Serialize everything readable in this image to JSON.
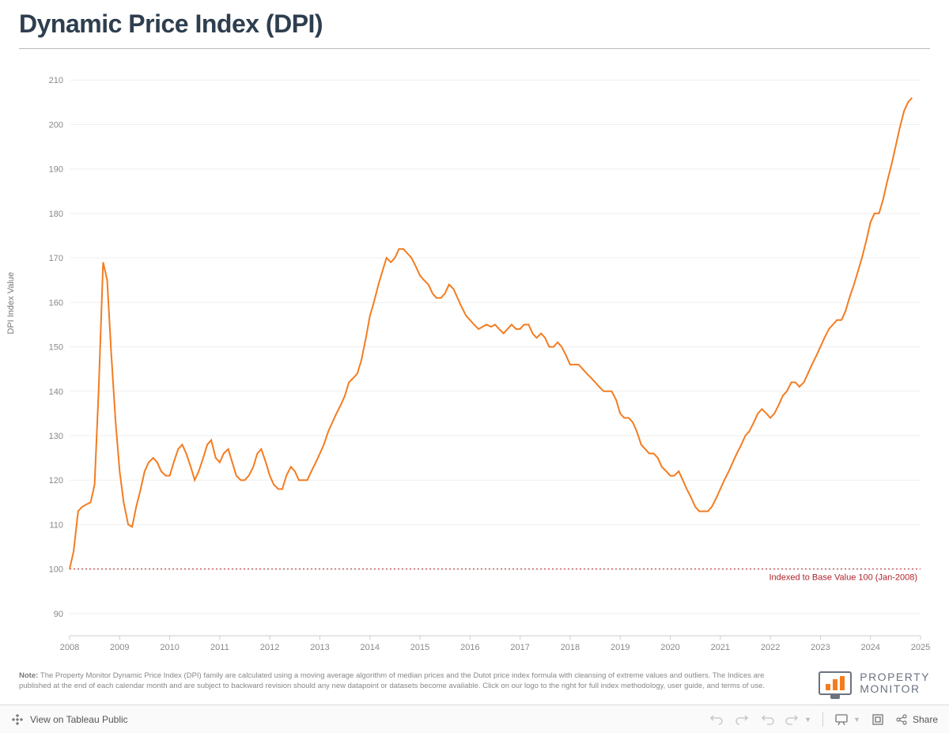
{
  "title": "Dynamic Price Index (DPI)",
  "chart": {
    "type": "line",
    "y_axis_title": "DPI Index Value",
    "line_color": "#f47c20",
    "line_width": 2,
    "background_color": "#ffffff",
    "grid_color": "#efefef",
    "axis_color": "#cccccc",
    "tick_label_color": "#888888",
    "tick_fontsize": 11,
    "y_ticks": [
      90,
      100,
      110,
      120,
      130,
      140,
      150,
      160,
      170,
      180,
      190,
      200,
      210
    ],
    "ylim": [
      85,
      212
    ],
    "x_ticks": [
      "2008",
      "2009",
      "2010",
      "2011",
      "2012",
      "2013",
      "2014",
      "2015",
      "2016",
      "2017",
      "2018",
      "2019",
      "2020",
      "2021",
      "2022",
      "2023",
      "2024",
      "2025"
    ],
    "xlim": [
      2008,
      2025
    ],
    "reference_line": {
      "value": 100,
      "label": "Indexed to Base Value 100 (Jan-2008)",
      "color": "#b0232a",
      "style": "dotted"
    },
    "series": [
      {
        "x": 2008.0,
        "y": 100.0
      },
      {
        "x": 2008.08,
        "y": 104.0
      },
      {
        "x": 2008.17,
        "y": 113.0
      },
      {
        "x": 2008.25,
        "y": 114.0
      },
      {
        "x": 2008.33,
        "y": 114.5
      },
      {
        "x": 2008.42,
        "y": 115.0
      },
      {
        "x": 2008.5,
        "y": 119.0
      },
      {
        "x": 2008.58,
        "y": 140.0
      },
      {
        "x": 2008.67,
        "y": 169.0
      },
      {
        "x": 2008.75,
        "y": 165.0
      },
      {
        "x": 2008.83,
        "y": 149.0
      },
      {
        "x": 2008.92,
        "y": 133.0
      },
      {
        "x": 2009.0,
        "y": 122.0
      },
      {
        "x": 2009.08,
        "y": 115.0
      },
      {
        "x": 2009.17,
        "y": 110.0
      },
      {
        "x": 2009.25,
        "y": 109.5
      },
      {
        "x": 2009.33,
        "y": 114.0
      },
      {
        "x": 2009.42,
        "y": 118.0
      },
      {
        "x": 2009.5,
        "y": 122.0
      },
      {
        "x": 2009.58,
        "y": 124.0
      },
      {
        "x": 2009.67,
        "y": 125.0
      },
      {
        "x": 2009.75,
        "y": 124.0
      },
      {
        "x": 2009.83,
        "y": 122.0
      },
      {
        "x": 2009.92,
        "y": 121.0
      },
      {
        "x": 2010.0,
        "y": 121.0
      },
      {
        "x": 2010.08,
        "y": 124.0
      },
      {
        "x": 2010.17,
        "y": 127.0
      },
      {
        "x": 2010.25,
        "y": 128.0
      },
      {
        "x": 2010.33,
        "y": 126.0
      },
      {
        "x": 2010.42,
        "y": 123.0
      },
      {
        "x": 2010.5,
        "y": 120.0
      },
      {
        "x": 2010.58,
        "y": 122.0
      },
      {
        "x": 2010.67,
        "y": 125.0
      },
      {
        "x": 2010.75,
        "y": 128.0
      },
      {
        "x": 2010.83,
        "y": 129.0
      },
      {
        "x": 2010.92,
        "y": 125.0
      },
      {
        "x": 2011.0,
        "y": 124.0
      },
      {
        "x": 2011.08,
        "y": 126.0
      },
      {
        "x": 2011.17,
        "y": 127.0
      },
      {
        "x": 2011.25,
        "y": 124.0
      },
      {
        "x": 2011.33,
        "y": 121.0
      },
      {
        "x": 2011.42,
        "y": 120.0
      },
      {
        "x": 2011.5,
        "y": 120.0
      },
      {
        "x": 2011.58,
        "y": 121.0
      },
      {
        "x": 2011.67,
        "y": 123.0
      },
      {
        "x": 2011.75,
        "y": 126.0
      },
      {
        "x": 2011.83,
        "y": 127.0
      },
      {
        "x": 2011.92,
        "y": 124.0
      },
      {
        "x": 2012.0,
        "y": 121.0
      },
      {
        "x": 2012.08,
        "y": 119.0
      },
      {
        "x": 2012.17,
        "y": 118.0
      },
      {
        "x": 2012.25,
        "y": 118.0
      },
      {
        "x": 2012.33,
        "y": 121.0
      },
      {
        "x": 2012.42,
        "y": 123.0
      },
      {
        "x": 2012.5,
        "y": 122.0
      },
      {
        "x": 2012.58,
        "y": 120.0
      },
      {
        "x": 2012.67,
        "y": 120.0
      },
      {
        "x": 2012.75,
        "y": 120.0
      },
      {
        "x": 2012.83,
        "y": 122.0
      },
      {
        "x": 2012.92,
        "y": 124.0
      },
      {
        "x": 2013.0,
        "y": 126.0
      },
      {
        "x": 2013.08,
        "y": 128.0
      },
      {
        "x": 2013.17,
        "y": 131.0
      },
      {
        "x": 2013.25,
        "y": 133.0
      },
      {
        "x": 2013.33,
        "y": 135.0
      },
      {
        "x": 2013.42,
        "y": 137.0
      },
      {
        "x": 2013.5,
        "y": 139.0
      },
      {
        "x": 2013.58,
        "y": 142.0
      },
      {
        "x": 2013.67,
        "y": 143.0
      },
      {
        "x": 2013.75,
        "y": 144.0
      },
      {
        "x": 2013.83,
        "y": 147.0
      },
      {
        "x": 2013.92,
        "y": 152.0
      },
      {
        "x": 2014.0,
        "y": 157.0
      },
      {
        "x": 2014.08,
        "y": 160.0
      },
      {
        "x": 2014.17,
        "y": 164.0
      },
      {
        "x": 2014.25,
        "y": 167.0
      },
      {
        "x": 2014.33,
        "y": 170.0
      },
      {
        "x": 2014.42,
        "y": 169.0
      },
      {
        "x": 2014.5,
        "y": 170.0
      },
      {
        "x": 2014.58,
        "y": 172.0
      },
      {
        "x": 2014.67,
        "y": 172.0
      },
      {
        "x": 2014.75,
        "y": 171.0
      },
      {
        "x": 2014.83,
        "y": 170.0
      },
      {
        "x": 2014.92,
        "y": 168.0
      },
      {
        "x": 2015.0,
        "y": 166.0
      },
      {
        "x": 2015.08,
        "y": 165.0
      },
      {
        "x": 2015.17,
        "y": 164.0
      },
      {
        "x": 2015.25,
        "y": 162.0
      },
      {
        "x": 2015.33,
        "y": 161.0
      },
      {
        "x": 2015.42,
        "y": 161.0
      },
      {
        "x": 2015.5,
        "y": 162.0
      },
      {
        "x": 2015.58,
        "y": 164.0
      },
      {
        "x": 2015.67,
        "y": 163.0
      },
      {
        "x": 2015.75,
        "y": 161.0
      },
      {
        "x": 2015.83,
        "y": 159.0
      },
      {
        "x": 2015.92,
        "y": 157.0
      },
      {
        "x": 2016.0,
        "y": 156.0
      },
      {
        "x": 2016.08,
        "y": 155.0
      },
      {
        "x": 2016.17,
        "y": 154.0
      },
      {
        "x": 2016.25,
        "y": 154.5
      },
      {
        "x": 2016.33,
        "y": 155.0
      },
      {
        "x": 2016.42,
        "y": 154.5
      },
      {
        "x": 2016.5,
        "y": 155.0
      },
      {
        "x": 2016.58,
        "y": 154.0
      },
      {
        "x": 2016.67,
        "y": 153.0
      },
      {
        "x": 2016.75,
        "y": 154.0
      },
      {
        "x": 2016.83,
        "y": 155.0
      },
      {
        "x": 2016.92,
        "y": 154.0
      },
      {
        "x": 2017.0,
        "y": 154.0
      },
      {
        "x": 2017.08,
        "y": 155.0
      },
      {
        "x": 2017.17,
        "y": 155.0
      },
      {
        "x": 2017.25,
        "y": 153.0
      },
      {
        "x": 2017.33,
        "y": 152.0
      },
      {
        "x": 2017.42,
        "y": 153.0
      },
      {
        "x": 2017.5,
        "y": 152.0
      },
      {
        "x": 2017.58,
        "y": 150.0
      },
      {
        "x": 2017.67,
        "y": 150.0
      },
      {
        "x": 2017.75,
        "y": 151.0
      },
      {
        "x": 2017.83,
        "y": 150.0
      },
      {
        "x": 2017.92,
        "y": 148.0
      },
      {
        "x": 2018.0,
        "y": 146.0
      },
      {
        "x": 2018.08,
        "y": 146.0
      },
      {
        "x": 2018.17,
        "y": 146.0
      },
      {
        "x": 2018.25,
        "y": 145.0
      },
      {
        "x": 2018.33,
        "y": 144.0
      },
      {
        "x": 2018.42,
        "y": 143.0
      },
      {
        "x": 2018.5,
        "y": 142.0
      },
      {
        "x": 2018.58,
        "y": 141.0
      },
      {
        "x": 2018.67,
        "y": 140.0
      },
      {
        "x": 2018.75,
        "y": 140.0
      },
      {
        "x": 2018.83,
        "y": 140.0
      },
      {
        "x": 2018.92,
        "y": 138.0
      },
      {
        "x": 2019.0,
        "y": 135.0
      },
      {
        "x": 2019.08,
        "y": 134.0
      },
      {
        "x": 2019.17,
        "y": 134.0
      },
      {
        "x": 2019.25,
        "y": 133.0
      },
      {
        "x": 2019.33,
        "y": 131.0
      },
      {
        "x": 2019.42,
        "y": 128.0
      },
      {
        "x": 2019.5,
        "y": 127.0
      },
      {
        "x": 2019.58,
        "y": 126.0
      },
      {
        "x": 2019.67,
        "y": 126.0
      },
      {
        "x": 2019.75,
        "y": 125.0
      },
      {
        "x": 2019.83,
        "y": 123.0
      },
      {
        "x": 2019.92,
        "y": 122.0
      },
      {
        "x": 2020.0,
        "y": 121.0
      },
      {
        "x": 2020.08,
        "y": 121.0
      },
      {
        "x": 2020.17,
        "y": 122.0
      },
      {
        "x": 2020.25,
        "y": 120.0
      },
      {
        "x": 2020.33,
        "y": 118.0
      },
      {
        "x": 2020.42,
        "y": 116.0
      },
      {
        "x": 2020.5,
        "y": 114.0
      },
      {
        "x": 2020.58,
        "y": 113.0
      },
      {
        "x": 2020.67,
        "y": 113.0
      },
      {
        "x": 2020.75,
        "y": 113.0
      },
      {
        "x": 2020.83,
        "y": 114.0
      },
      {
        "x": 2020.92,
        "y": 116.0
      },
      {
        "x": 2021.0,
        "y": 118.0
      },
      {
        "x": 2021.08,
        "y": 120.0
      },
      {
        "x": 2021.17,
        "y": 122.0
      },
      {
        "x": 2021.25,
        "y": 124.0
      },
      {
        "x": 2021.33,
        "y": 126.0
      },
      {
        "x": 2021.42,
        "y": 128.0
      },
      {
        "x": 2021.5,
        "y": 130.0
      },
      {
        "x": 2021.58,
        "y": 131.0
      },
      {
        "x": 2021.67,
        "y": 133.0
      },
      {
        "x": 2021.75,
        "y": 135.0
      },
      {
        "x": 2021.83,
        "y": 136.0
      },
      {
        "x": 2021.92,
        "y": 135.0
      },
      {
        "x": 2022.0,
        "y": 134.0
      },
      {
        "x": 2022.08,
        "y": 135.0
      },
      {
        "x": 2022.17,
        "y": 137.0
      },
      {
        "x": 2022.25,
        "y": 139.0
      },
      {
        "x": 2022.33,
        "y": 140.0
      },
      {
        "x": 2022.42,
        "y": 142.0
      },
      {
        "x": 2022.5,
        "y": 142.0
      },
      {
        "x": 2022.58,
        "y": 141.0
      },
      {
        "x": 2022.67,
        "y": 142.0
      },
      {
        "x": 2022.75,
        "y": 144.0
      },
      {
        "x": 2022.83,
        "y": 146.0
      },
      {
        "x": 2022.92,
        "y": 148.0
      },
      {
        "x": 2023.0,
        "y": 150.0
      },
      {
        "x": 2023.08,
        "y": 152.0
      },
      {
        "x": 2023.17,
        "y": 154.0
      },
      {
        "x": 2023.25,
        "y": 155.0
      },
      {
        "x": 2023.33,
        "y": 156.0
      },
      {
        "x": 2023.42,
        "y": 156.0
      },
      {
        "x": 2023.5,
        "y": 158.0
      },
      {
        "x": 2023.58,
        "y": 161.0
      },
      {
        "x": 2023.67,
        "y": 164.0
      },
      {
        "x": 2023.75,
        "y": 167.0
      },
      {
        "x": 2023.83,
        "y": 170.0
      },
      {
        "x": 2023.92,
        "y": 174.0
      },
      {
        "x": 2024.0,
        "y": 178.0
      },
      {
        "x": 2024.08,
        "y": 180.0
      },
      {
        "x": 2024.17,
        "y": 180.0
      },
      {
        "x": 2024.25,
        "y": 183.0
      },
      {
        "x": 2024.33,
        "y": 187.0
      },
      {
        "x": 2024.42,
        "y": 191.0
      },
      {
        "x": 2024.5,
        "y": 195.0
      },
      {
        "x": 2024.58,
        "y": 199.0
      },
      {
        "x": 2024.67,
        "y": 203.0
      },
      {
        "x": 2024.75,
        "y": 205.0
      },
      {
        "x": 2024.83,
        "y": 206.0
      }
    ]
  },
  "note_prefix": "Note: ",
  "note_body": "The Property Monitor Dynamic Price Index (DPI) family are calculated using a moving average algorithm of median prices and the Dutot price index formula with cleansing of extreme values and outliers. The Indices are published at the end of each calendar month and are subject to backward revision should any new datapoint or datasets become available.  Click on our logo to the right for full index methodology, user guide, and terms of use.",
  "logo": {
    "line1": "PROPERTY",
    "line2": "MONITOR",
    "bar_color": "#f47c20",
    "frame_color": "#6b7380"
  },
  "toolbar": {
    "view_label": "View on Tableau Public",
    "share_label": "Share"
  }
}
